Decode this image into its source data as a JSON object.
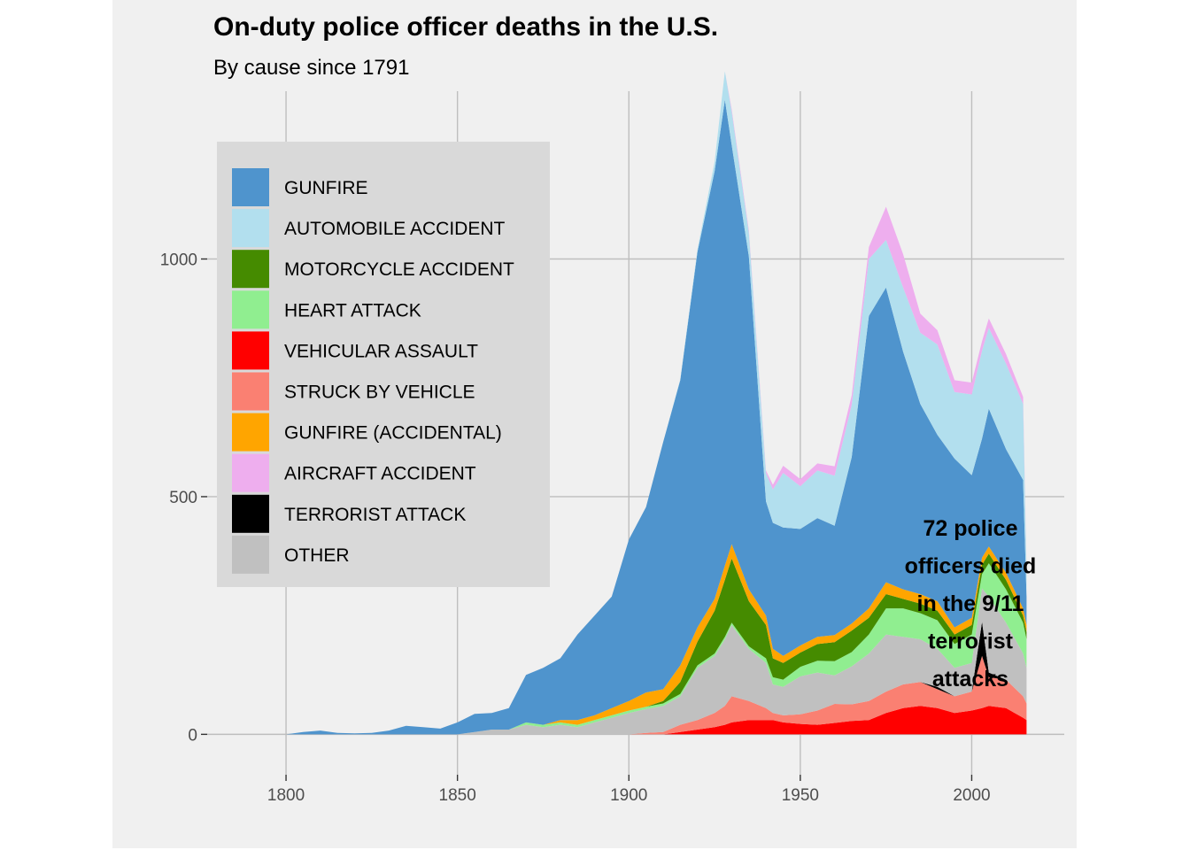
{
  "chart_data": {
    "type": "area",
    "title": "On-duty police officer deaths in the U.S.",
    "subtitle": "By cause since 1791",
    "xlabel": "",
    "ylabel": "",
    "xlim": [
      1777,
      2027
    ],
    "ylim": [
      -85,
      1353
    ],
    "x_ticks": [
      "1800",
      "1850",
      "1900",
      "1950",
      "2000"
    ],
    "y_ticks": [
      "0",
      "500",
      "1000"
    ],
    "grid": true,
    "legend_position": "top-left",
    "x": [
      1791,
      1795,
      1800,
      1805,
      1810,
      1815,
      1820,
      1825,
      1830,
      1835,
      1840,
      1845,
      1850,
      1855,
      1860,
      1865,
      1870,
      1875,
      1880,
      1885,
      1890,
      1895,
      1900,
      1905,
      1910,
      1915,
      1920,
      1925,
      1928,
      1930,
      1935,
      1940,
      1942,
      1945,
      1950,
      1955,
      1960,
      1965,
      1970,
      1975,
      1980,
      1985,
      1990,
      1995,
      2000,
      2003,
      2005,
      2010,
      2015,
      2016
    ],
    "series": [
      {
        "name": "VEHICULAR ASSAULT",
        "color": "#ff0000",
        "values": [
          0,
          0,
          0,
          0,
          0,
          0,
          0,
          0,
          0,
          0,
          0,
          0,
          0,
          0,
          0,
          0,
          0,
          0,
          0,
          0,
          0,
          0,
          0,
          0,
          0,
          5,
          10,
          15,
          20,
          25,
          30,
          30,
          30,
          25,
          22,
          20,
          24,
          28,
          30,
          45,
          55,
          60,
          55,
          45,
          50,
          55,
          60,
          55,
          35,
          30
        ]
      },
      {
        "name": "STRUCK BY VEHICLE",
        "color": "#fa8072",
        "values": [
          0,
          0,
          0,
          0,
          0,
          0,
          0,
          0,
          0,
          0,
          0,
          0,
          0,
          0,
          0,
          0,
          0,
          0,
          0,
          0,
          0,
          0,
          0,
          3,
          5,
          15,
          20,
          30,
          40,
          55,
          40,
          25,
          15,
          15,
          20,
          30,
          40,
          35,
          40,
          45,
          50,
          50,
          40,
          35,
          40,
          110,
          60,
          60,
          45,
          35
        ]
      },
      {
        "name": "TERRORIST ATTACK",
        "color": "#000000",
        "values": [
          0,
          0,
          0,
          0,
          0,
          0,
          0,
          0,
          0,
          0,
          0,
          0,
          0,
          0,
          0,
          0,
          0,
          0,
          0,
          0,
          0,
          0,
          0,
          0,
          0,
          0,
          0,
          0,
          0,
          0,
          0,
          0,
          0,
          0,
          0,
          0,
          0,
          0,
          0,
          0,
          0,
          0,
          5,
          0,
          0,
          72,
          10,
          0,
          0,
          0
        ]
      },
      {
        "name": "OTHER",
        "color": "#c0c0c0",
        "values": [
          0,
          0,
          0,
          0,
          0,
          0,
          0,
          0,
          0,
          0,
          0,
          0,
          0,
          5,
          10,
          10,
          20,
          15,
          20,
          15,
          25,
          35,
          45,
          50,
          55,
          60,
          110,
          120,
          140,
          150,
          110,
          95,
          60,
          60,
          80,
          80,
          60,
          80,
          100,
          120,
          100,
          90,
          80,
          60,
          60,
          70,
          160,
          120,
          90,
          75
        ]
      },
      {
        "name": "HEART ATTACK",
        "color": "#90ee90",
        "values": [
          0,
          0,
          0,
          0,
          0,
          0,
          0,
          0,
          0,
          0,
          0,
          0,
          0,
          0,
          0,
          0,
          5,
          5,
          5,
          5,
          5,
          5,
          5,
          5,
          5,
          5,
          5,
          5,
          5,
          5,
          5,
          10,
          15,
          15,
          20,
          25,
          30,
          30,
          40,
          55,
          60,
          55,
          60,
          50,
          60,
          30,
          70,
          70,
          65,
          60
        ]
      },
      {
        "name": "MOTORCYCLE ACCIDENT",
        "color": "#458b00",
        "values": [
          0,
          0,
          0,
          0,
          0,
          0,
          0,
          0,
          0,
          0,
          0,
          0,
          0,
          0,
          0,
          0,
          0,
          0,
          0,
          0,
          0,
          0,
          0,
          0,
          5,
          25,
          50,
          90,
          120,
          135,
          95,
          70,
          40,
          35,
          30,
          35,
          40,
          45,
          35,
          30,
          20,
          20,
          20,
          20,
          20,
          20,
          20,
          20,
          15,
          15
        ]
      },
      {
        "name": "GUNFIRE (ACCIDENTAL)",
        "color": "#ffa500",
        "values": [
          0,
          0,
          0,
          0,
          0,
          0,
          0,
          0,
          0,
          0,
          0,
          0,
          0,
          0,
          0,
          0,
          0,
          0,
          5,
          10,
          10,
          15,
          20,
          30,
          25,
          35,
          30,
          25,
          30,
          30,
          25,
          20,
          20,
          15,
          15,
          15,
          15,
          15,
          20,
          25,
          20,
          20,
          20,
          15,
          15,
          15,
          15,
          15,
          15,
          15
        ]
      },
      {
        "name": "GUNFIRE",
        "color": "#4f94cd",
        "values": [
          0,
          0,
          0,
          5,
          8,
          3,
          2,
          3,
          8,
          18,
          15,
          12,
          25,
          38,
          35,
          45,
          100,
          120,
          130,
          180,
          210,
          235,
          340,
          390,
          520,
          600,
          790,
          900,
          980,
          840,
          700,
          240,
          265,
          270,
          245,
          250,
          230,
          350,
          615,
          620,
          500,
          400,
          350,
          355,
          300,
          250,
          290,
          260,
          270,
          60
        ]
      },
      {
        "name": "AUTOMOBILE ACCIDENT",
        "color": "#b2dfee",
        "values": [
          0,
          0,
          0,
          0,
          0,
          0,
          0,
          0,
          0,
          0,
          0,
          0,
          0,
          0,
          0,
          0,
          0,
          0,
          0,
          0,
          0,
          0,
          0,
          0,
          0,
          2,
          5,
          20,
          60,
          70,
          50,
          60,
          70,
          115,
          90,
          100,
          105,
          110,
          120,
          100,
          135,
          150,
          190,
          140,
          170,
          185,
          170,
          180,
          160,
          60
        ]
      },
      {
        "name": "AIRCRAFT ACCIDENT",
        "color": "#eeaeee",
        "values": [
          0,
          0,
          0,
          0,
          0,
          0,
          0,
          0,
          0,
          0,
          0,
          0,
          0,
          0,
          0,
          0,
          0,
          0,
          0,
          0,
          0,
          0,
          0,
          0,
          0,
          0,
          0,
          0,
          0,
          5,
          5,
          5,
          10,
          15,
          15,
          15,
          20,
          20,
          25,
          70,
          70,
          40,
          30,
          25,
          25,
          20,
          20,
          20,
          15,
          5
        ]
      }
    ],
    "annotations": [
      "72 police",
      "officers died",
      "in the 9/11",
      "terrorist",
      "attacks"
    ],
    "legend_order": [
      "GUNFIRE",
      "AUTOMOBILE ACCIDENT",
      "MOTORCYCLE ACCIDENT",
      "HEART ATTACK",
      "VEHICULAR ASSAULT",
      "STRUCK BY VEHICLE",
      "GUNFIRE (ACCIDENTAL)",
      "AIRCRAFT ACCIDENT",
      "TERRORIST ATTACK",
      "OTHER"
    ],
    "legend_colors": [
      "#4f94cd",
      "#b2dfee",
      "#458b00",
      "#90ee90",
      "#ff0000",
      "#fa8072",
      "#ffa500",
      "#eeaeee",
      "#000000",
      "#c0c0c0"
    ]
  }
}
